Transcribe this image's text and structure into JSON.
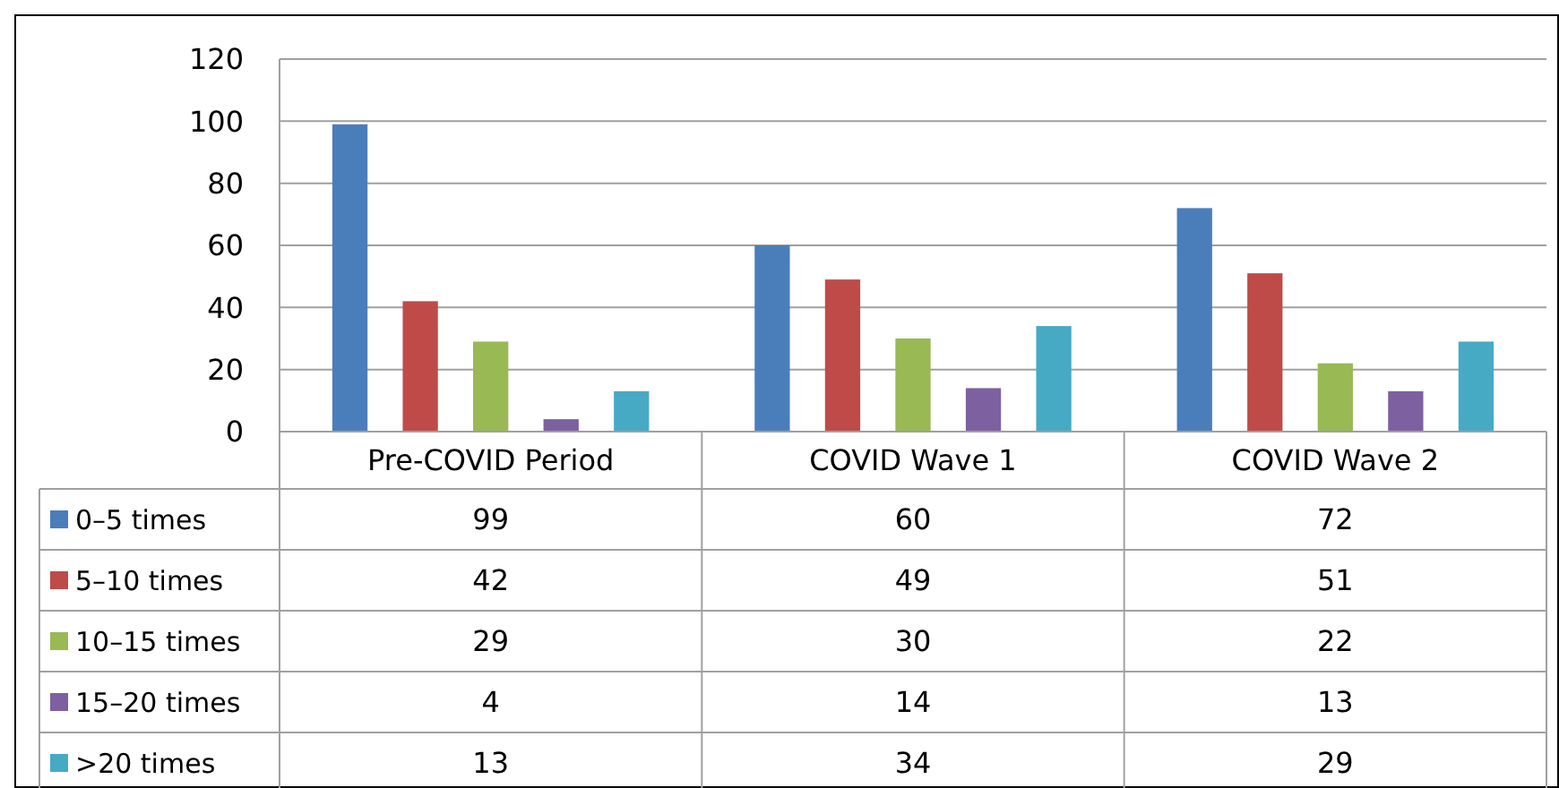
{
  "chart_data": {
    "type": "bar",
    "categories": [
      "Pre-COVID Period",
      "COVID Wave 1",
      "COVID Wave 2"
    ],
    "series": [
      {
        "name": "0–5 times",
        "color": "#4a7ebb",
        "values": [
          99,
          60,
          72
        ]
      },
      {
        "name": "5–10 times",
        "color": "#be4b48",
        "values": [
          42,
          49,
          51
        ]
      },
      {
        "name": "10–15 times",
        "color": "#98b954",
        "values": [
          29,
          30,
          22
        ]
      },
      {
        "name": "15–20 times",
        "color": "#7d60a0",
        "values": [
          4,
          14,
          13
        ]
      },
      {
        "name": ">20 times",
        "color": "#46aac5",
        "values": [
          13,
          34,
          29
        ]
      }
    ],
    "ylim": [
      0,
      120
    ],
    "yticks": [
      0,
      20,
      40,
      60,
      80,
      100,
      120
    ],
    "grid": "y",
    "legend": "bottom",
    "data_labels": true
  }
}
